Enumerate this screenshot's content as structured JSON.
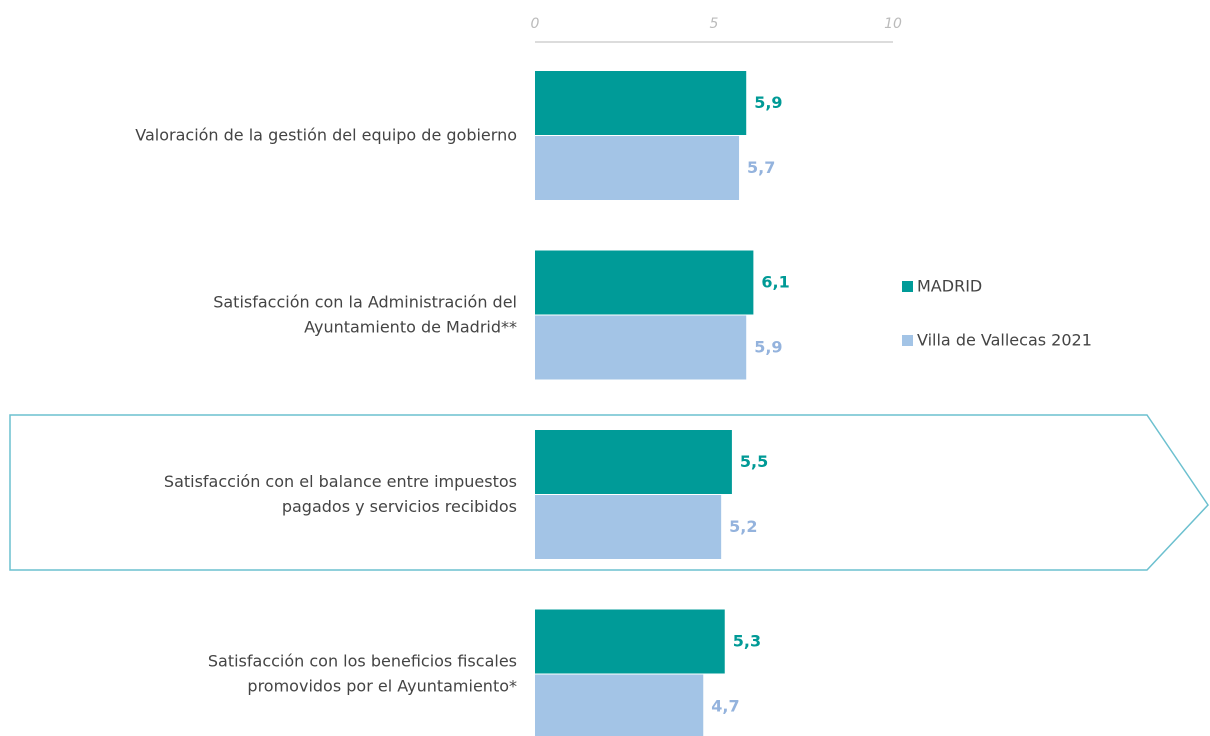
{
  "chart_data": {
    "type": "hbar",
    "categories": [
      [
        "Valoración de la gestión del equipo de gobierno"
      ],
      [
        "Satisfacción con la Administración del",
        "Ayuntamiento de Madrid**"
      ],
      [
        "Satisfacción con el balance entre impuestos",
        "pagados y servicios recibidos"
      ],
      [
        "Satisfacción con los beneficios fiscales",
        "promovidos por el Ayuntamiento*"
      ]
    ],
    "series": [
      {
        "name": "MADRID",
        "color": "#009b98",
        "label_color": "#009a96",
        "values": [
          5.9,
          6.1,
          5.5,
          5.3
        ],
        "value_labels": [
          "5,9",
          "6,1",
          "5,5",
          "5,3"
        ]
      },
      {
        "name": "Villa de Vallecas 2021",
        "color": "#a3c4e6",
        "label_color": "#94b3dd",
        "values": [
          5.7,
          5.9,
          5.2,
          4.7
        ],
        "value_labels": [
          "5,7",
          "5,9",
          "5,2",
          "4,7"
        ]
      }
    ],
    "xlim": [
      0,
      10
    ],
    "xticks": [
      0,
      5,
      10
    ],
    "legend": "right"
  }
}
